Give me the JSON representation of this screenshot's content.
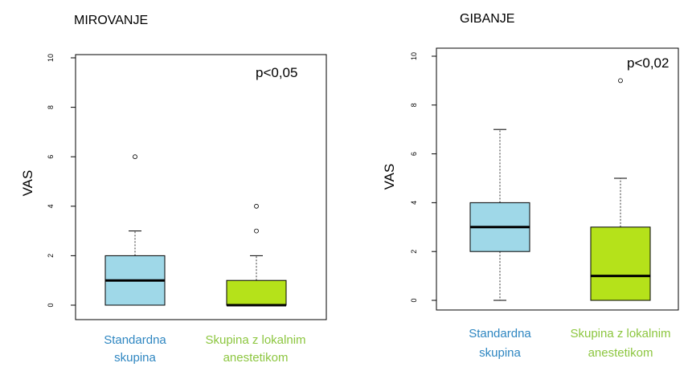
{
  "chart_data": [
    {
      "type": "box",
      "title": "MIROVANJE",
      "ylabel": "VAS",
      "ylim": [
        0,
        10
      ],
      "yticks": [
        0,
        2,
        4,
        6,
        8,
        10
      ],
      "annotation": "p<0,05",
      "categories": [
        {
          "line1": "Standardna",
          "line2": "skupina",
          "label_color": "#2e86c1"
        },
        {
          "line1": "Skupina z lokalnim",
          "line2": "anestetikom",
          "label_color": "#8cc63f"
        }
      ],
      "boxes": [
        {
          "color": "#9fd8e8",
          "min": 0,
          "q1": 0,
          "median": 1,
          "q3": 2,
          "max": 3,
          "outliers": [
            6
          ]
        },
        {
          "color": "#b5e21a",
          "min": 0,
          "q1": 0,
          "median": 0,
          "q3": 1,
          "max": 2,
          "outliers": [
            3,
            4
          ]
        }
      ]
    },
    {
      "type": "box",
      "title": "GIBANJE",
      "ylabel": "VAS",
      "ylim": [
        0,
        10
      ],
      "yticks": [
        0,
        2,
        4,
        6,
        8,
        10
      ],
      "annotation": "p<0,02",
      "categories": [
        {
          "line1": "Standardna",
          "line2": "skupina",
          "label_color": "#2e86c1"
        },
        {
          "line1": "Skupina z lokalnim",
          "line2": "anestetikom",
          "label_color": "#8cc63f"
        }
      ],
      "boxes": [
        {
          "color": "#9fd8e8",
          "min": 0,
          "q1": 2,
          "median": 3,
          "q3": 4,
          "max": 7,
          "outliers": []
        },
        {
          "color": "#b5e21a",
          "min": 0,
          "q1": 0,
          "median": 1,
          "q3": 3,
          "max": 5,
          "outliers": [
            9
          ]
        }
      ]
    }
  ]
}
